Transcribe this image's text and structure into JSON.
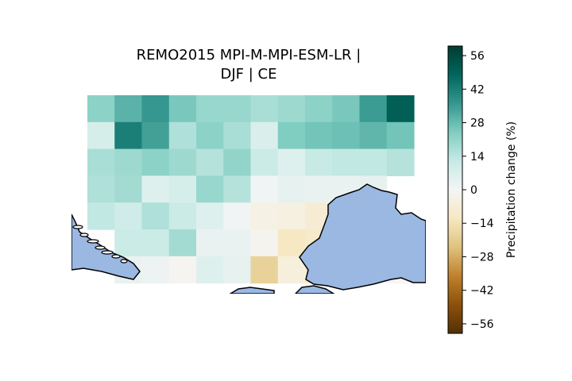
{
  "title_lines": [
    "REMO2015 MPI-M-MPI-ESM-LR |",
    "DJF | CE"
  ],
  "chart_data": {
    "type": "heatmap",
    "colorbar": {
      "label": "Precipitation change (%)",
      "range": [
        -60,
        60
      ],
      "ticks": [
        -56,
        -42,
        -28,
        -14,
        0,
        14,
        28,
        42,
        56
      ],
      "colormap": "BrBG"
    },
    "grid_note": "rows top-to-bottom, columns left-to-right; null = no data",
    "values": [
      [
        22,
        30,
        36,
        25,
        20,
        20,
        17,
        19,
        22,
        25,
        35,
        50
      ],
      [
        8,
        42,
        34,
        16,
        22,
        17,
        7,
        24,
        26,
        27,
        29,
        26
      ],
      [
        17,
        19,
        22,
        19,
        15,
        21,
        11,
        6,
        12,
        13,
        13,
        15
      ],
      [
        16,
        18,
        6,
        8,
        20,
        15,
        1,
        4,
        3,
        3,
        4,
        null
      ],
      [
        13,
        10,
        16,
        11,
        6,
        1,
        -4,
        -5,
        -8,
        null,
        null,
        null
      ],
      [
        null,
        11,
        11,
        18,
        3,
        3,
        -2,
        -12,
        -10,
        null,
        null,
        null
      ],
      [
        null,
        3,
        2,
        -1,
        6,
        4,
        -19,
        -6,
        -9,
        null,
        null,
        0
      ]
    ],
    "sea_color": "#9ab8e2",
    "coast_color": "#000000"
  }
}
